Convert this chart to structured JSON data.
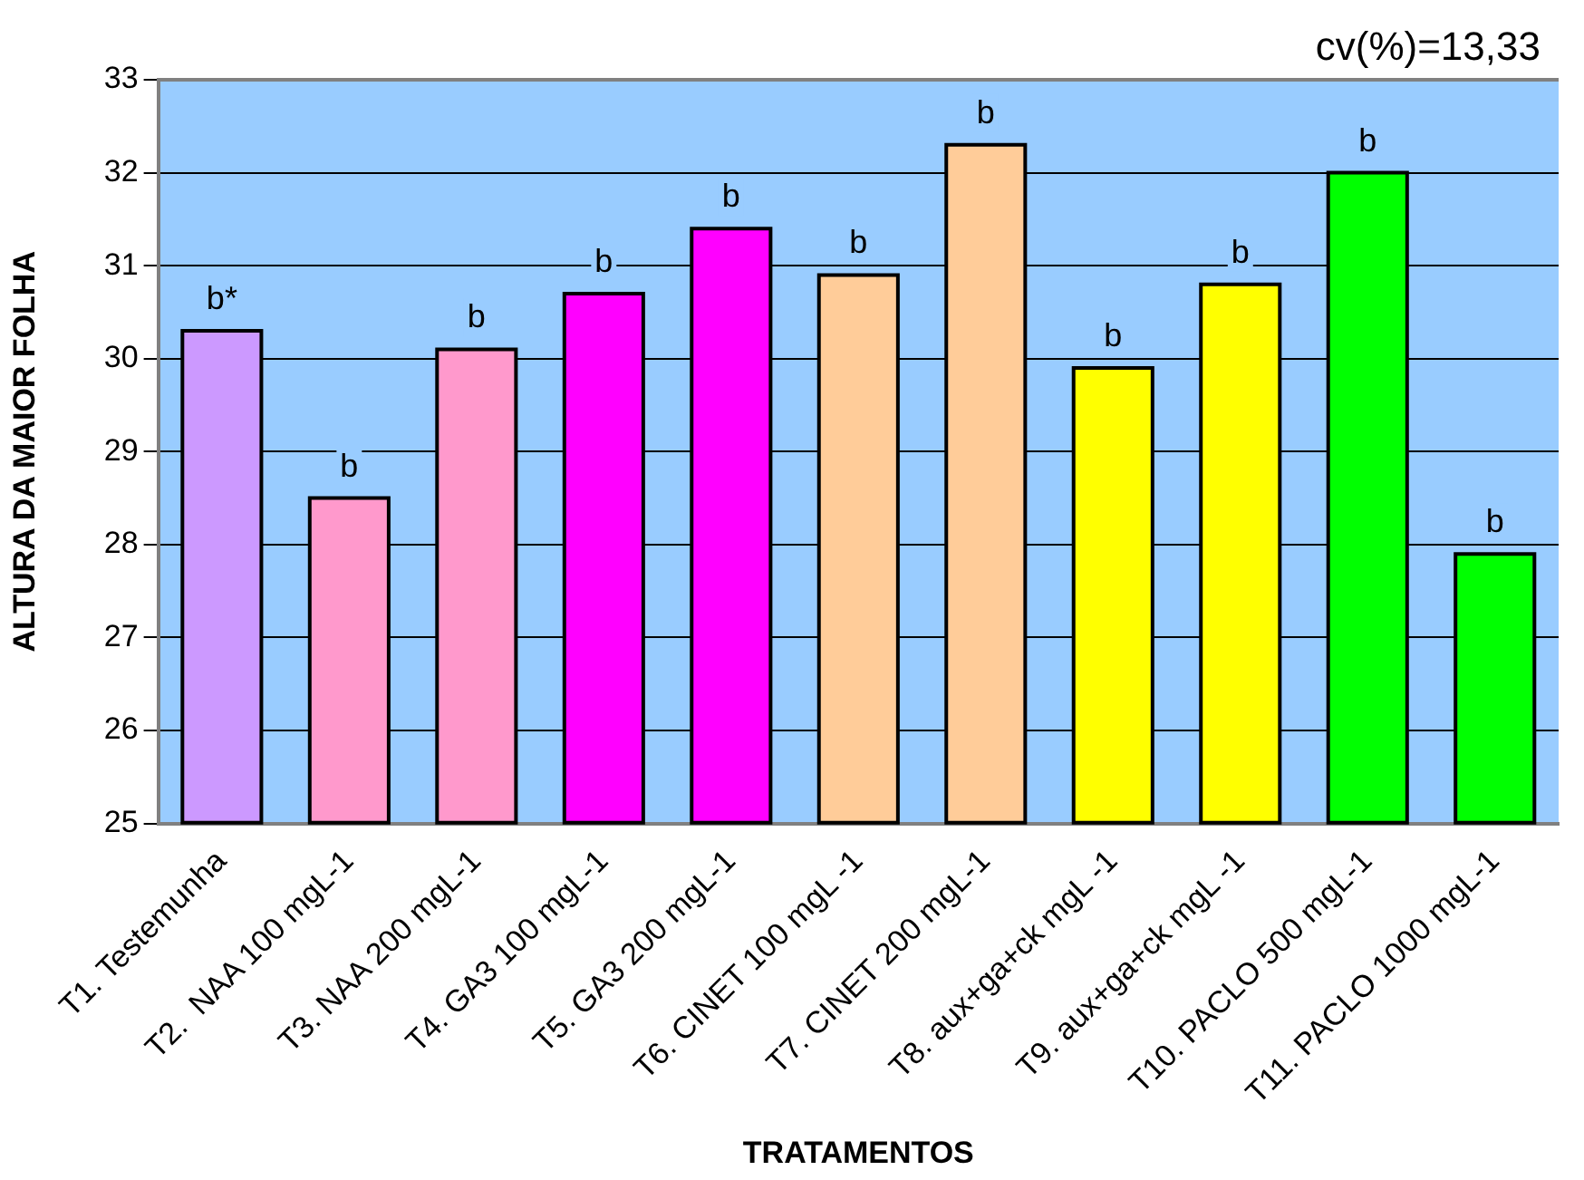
{
  "chart_data": {
    "type": "bar",
    "xlabel": "TRATAMENTOS",
    "ylabel": "ALTURA DA MAIOR FOLHA",
    "annotations": [
      "cv(%)=13,33"
    ],
    "categories": [
      "T1. Testemunha",
      "T2.  NAA 100 mgL-1",
      "T3. NAA 200 mgL-1",
      "T4. GA3 100 mgL-1",
      "T5. GA3 200 mgL-1",
      "T6. CINET 100 mgL -1",
      "T7. CINET 200 mgL-1",
      "T8. aux+ga+ck mgL -1",
      "T9. aux+ga+ck mgL -1",
      "T10. PACLO 500 mgL-1",
      "T11. PACLO 1000 mgL-1"
    ],
    "values": [
      30.3,
      28.5,
      30.1,
      30.7,
      31.4,
      30.9,
      32.3,
      29.9,
      30.8,
      32.0,
      27.9
    ],
    "colors": [
      "#cc99ff",
      "#ff99cc",
      "#ff99cc",
      "#ff00ff",
      "#ff00ff",
      "#ffcc99",
      "#ffcc99",
      "#ffff00",
      "#ffff00",
      "#00ff00",
      "#00ff00"
    ],
    "value_labels": [
      "b*",
      "b",
      "b",
      "b",
      "b",
      "b",
      "b",
      "b",
      "b",
      "b",
      "b"
    ],
    "ylim": [
      25,
      33
    ],
    "yticks": [
      25,
      26,
      27,
      28,
      29,
      30,
      31,
      32,
      33
    ],
    "grid": "y",
    "legend": false
  }
}
